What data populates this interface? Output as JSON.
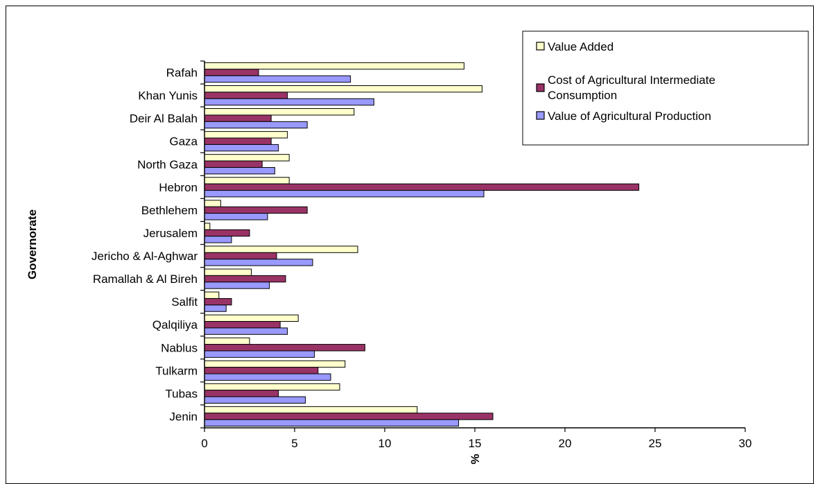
{
  "chart_data": {
    "type": "bar",
    "orientation": "horizontal",
    "xlabel": "%",
    "ylabel": "Governorate",
    "xlim": [
      0,
      30
    ],
    "xticks": [
      0,
      5,
      10,
      15,
      20,
      25,
      30
    ],
    "grid": false,
    "legend_position": "top-right",
    "categories": [
      "Rafah",
      "Khan Yunis",
      "Deir Al Balah",
      "Gaza",
      "North Gaza",
      "Hebron",
      "Bethlehem",
      "Jerusalem",
      "Jericho & Al-Aghwar",
      "Ramallah & Al Bireh",
      "Salfit",
      "Qalqiliya",
      "Nablus",
      "Tulkarm",
      "Tubas",
      "Jenin"
    ],
    "series": [
      {
        "name": "Value Added",
        "color": "#ffffcc",
        "values": [
          14.4,
          15.4,
          8.3,
          4.6,
          4.7,
          4.7,
          0.9,
          0.3,
          8.5,
          2.6,
          0.8,
          5.2,
          2.5,
          7.8,
          7.5,
          11.8
        ]
      },
      {
        "name": "Cost of Agricultural Intermediate Consumption",
        "color": "#993366",
        "values": [
          3.0,
          4.6,
          3.7,
          3.7,
          3.2,
          24.1,
          5.7,
          2.5,
          4.0,
          4.5,
          1.5,
          4.2,
          8.9,
          6.3,
          4.1,
          16.0
        ]
      },
      {
        "name": "Value of Agricultural Production",
        "color": "#9999ff",
        "values": [
          8.1,
          9.4,
          5.7,
          4.1,
          3.9,
          15.5,
          3.5,
          1.5,
          6.0,
          3.6,
          1.2,
          4.6,
          6.1,
          7.0,
          5.6,
          14.1
        ]
      }
    ]
  }
}
